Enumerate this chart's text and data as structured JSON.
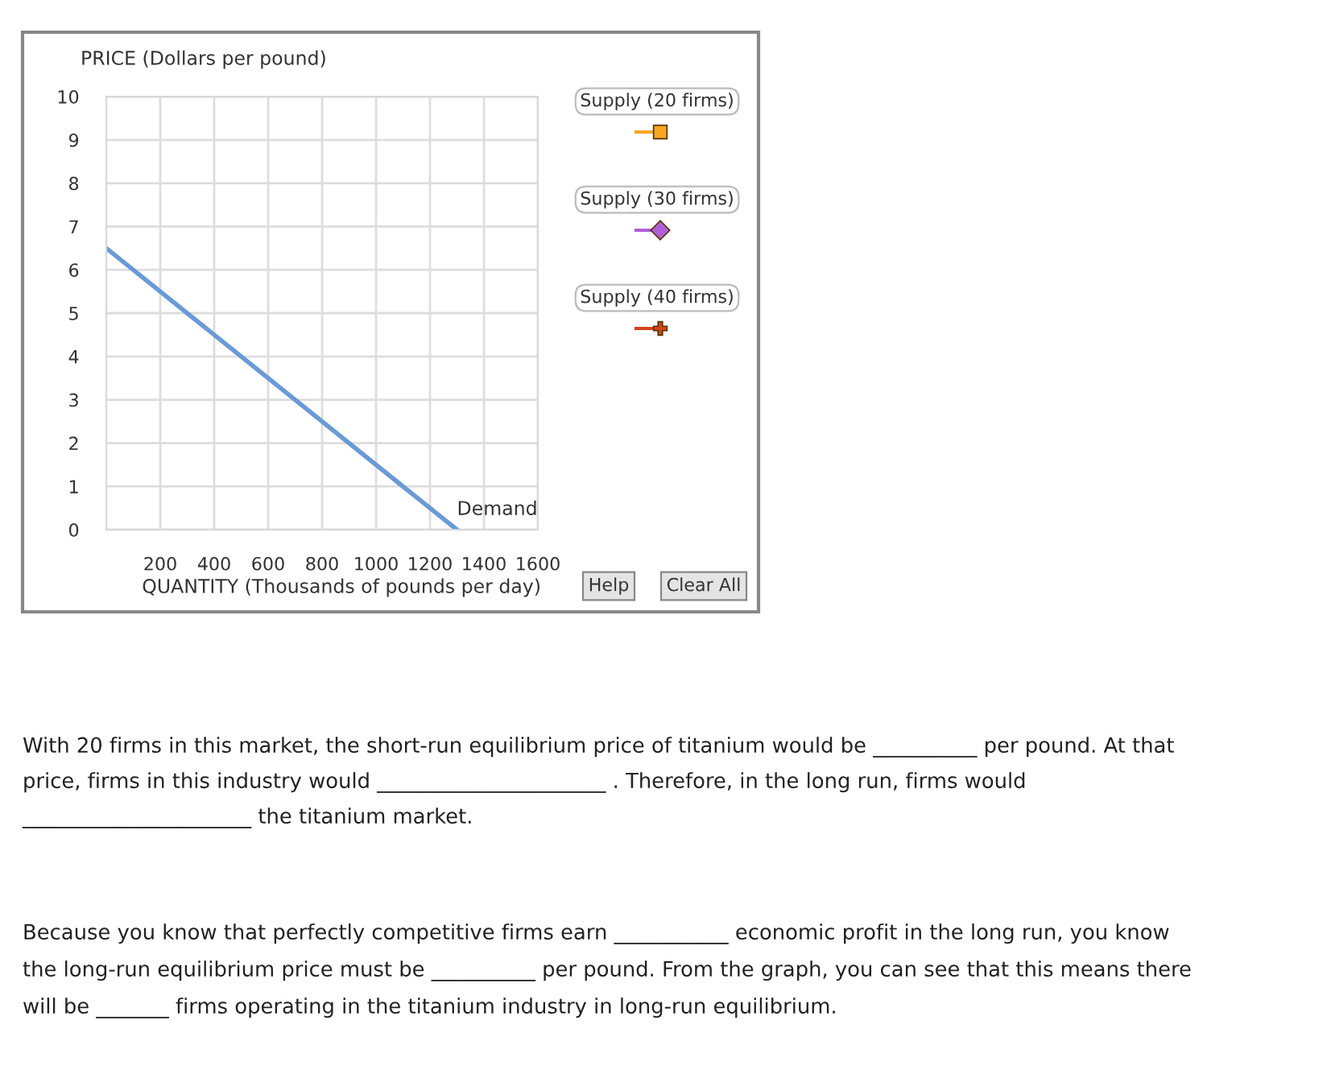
{
  "chart_data": {
    "type": "line",
    "xlabel": "QUANTITY (Thousands of pounds per day)",
    "ylabel": "PRICE (Dollars per pound)",
    "series": [
      {
        "name": "Demand",
        "color": "#6a9ad6",
        "x": [
          0,
          1300
        ],
        "values": [
          6.5,
          0
        ]
      }
    ],
    "xlim": [
      0,
      1600
    ],
    "ylim": [
      0,
      10
    ],
    "xticks": [
      200,
      400,
      600,
      800,
      1000,
      1200,
      1400,
      1600
    ],
    "yticks": [
      0,
      1,
      2,
      3,
      4,
      5,
      6,
      7,
      8,
      9,
      10
    ],
    "grid": true,
    "legend": false,
    "marker": "none",
    "line_style": "solid",
    "annotations": [
      "Supply (20 firms)",
      "Supply (30 firms)",
      "Supply (40 firms)",
      "Help",
      "Clear All",
      "With 20 firms in this market, the short-run equilibrium price of titanium would be __________ per pound. At that",
      "price, firms in this industry would ______________________ . Therefore, in the long run, firms would",
      "______________________ the titanium market.",
      "Because you know that perfectly competitive firms earn ___________ economic profit in the long run, you know",
      "the long-run equilibrium price must be __________ per pound. From the graph, you can see that this means there",
      "will be _______ firms operating in the titanium industry in long-run equilibrium."
    ]
  }
}
